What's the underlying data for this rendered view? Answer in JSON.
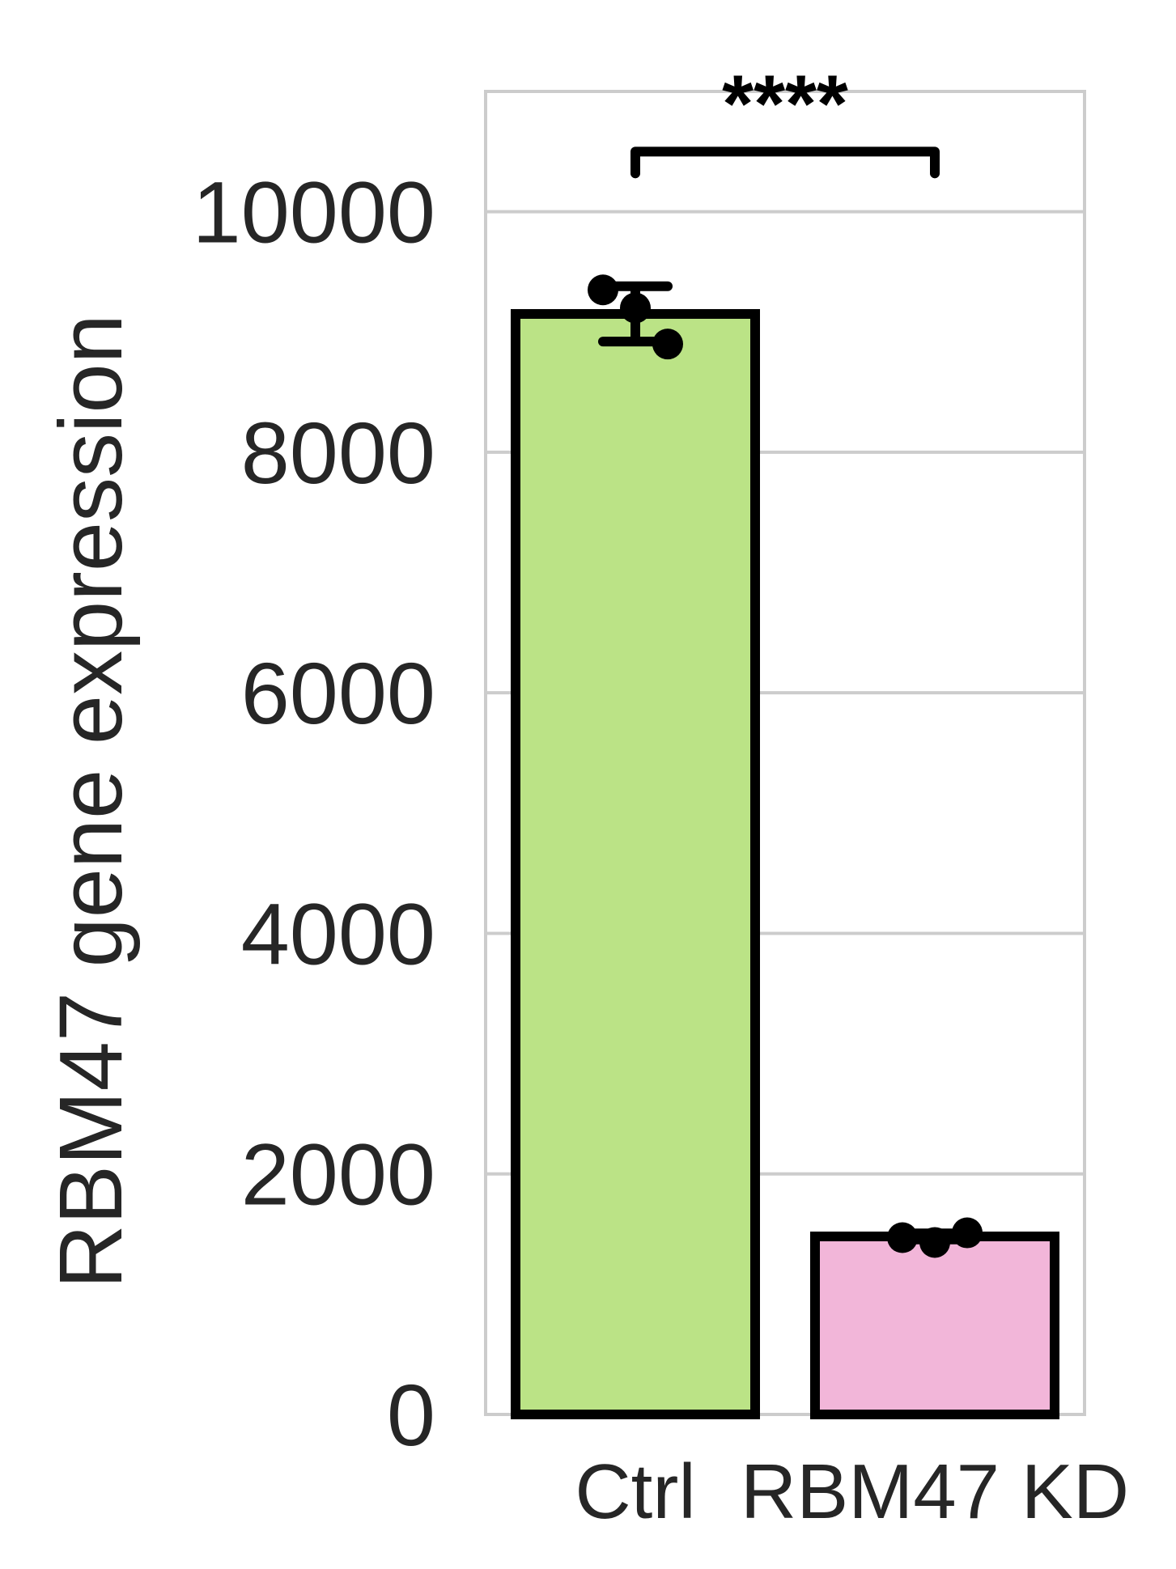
{
  "chart_data": {
    "type": "bar",
    "title": "",
    "xlabel": "",
    "ylabel": "RBM47 gene expression",
    "ylim": [
      0,
      11000
    ],
    "yticks": [
      0,
      2000,
      4000,
      6000,
      8000,
      10000
    ],
    "grid": true,
    "legend": "none",
    "categories": [
      "Ctrl",
      "RBM47 KD"
    ],
    "values": [
      9150,
      1480
    ],
    "errors": [
      230,
      25
    ],
    "colors": [
      "#bbe386",
      "#f2b6d9"
    ],
    "edge_color": "#000000",
    "points": [
      [
        9350,
        9200,
        8900
      ],
      [
        1470,
        1430,
        1510
      ]
    ],
    "significance": {
      "label": "****",
      "from": "Ctrl",
      "to": "RBM47 KD",
      "level": 10500
    }
  }
}
